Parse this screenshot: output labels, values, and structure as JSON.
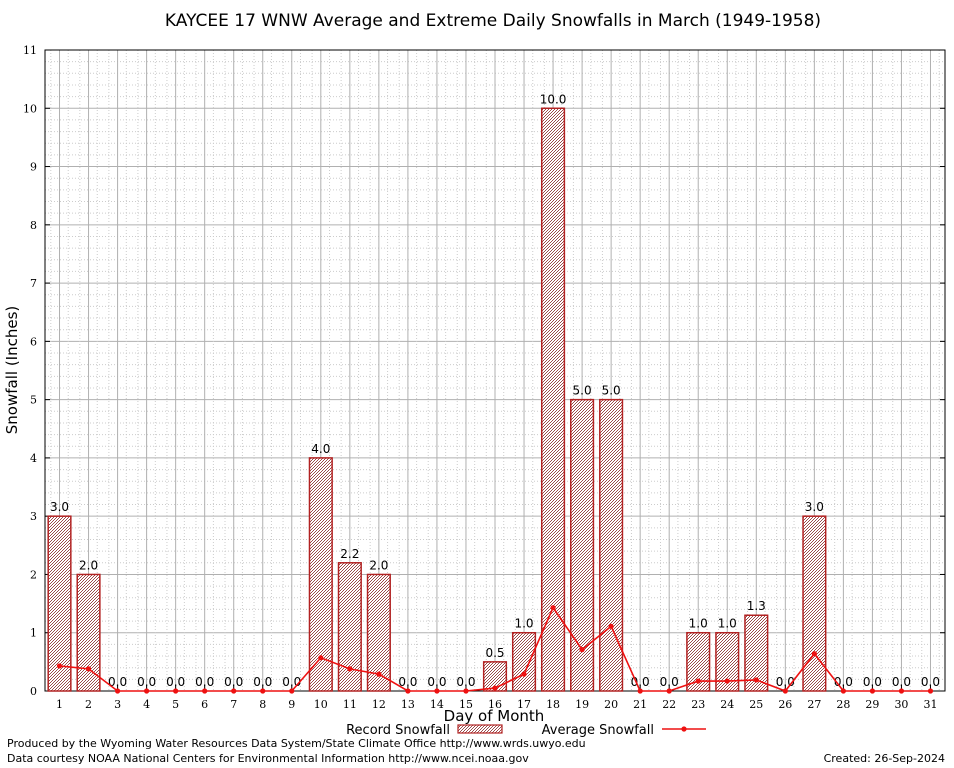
{
  "chart_data": {
    "type": "bar",
    "title": "KAYCEE 17 WNW Average and Extreme Daily Snowfalls in March (1949-1958)",
    "xlabel": "Day of Month",
    "ylabel": "Snowfall (Inches)",
    "ylim": [
      0,
      11
    ],
    "yticks": [
      "0",
      "1",
      "2",
      "3",
      "4",
      "5",
      "6",
      "7",
      "8",
      "9",
      "10",
      "11"
    ],
    "categories": [
      "1",
      "2",
      "3",
      "4",
      "5",
      "6",
      "7",
      "8",
      "9",
      "10",
      "11",
      "12",
      "13",
      "14",
      "15",
      "16",
      "17",
      "18",
      "19",
      "20",
      "21",
      "22",
      "23",
      "24",
      "25",
      "26",
      "27",
      "28",
      "29",
      "30",
      "31"
    ],
    "grid": true,
    "legend_position": "bottom",
    "series": [
      {
        "name": "Record Snowfall",
        "type": "bar",
        "color": "#b22222",
        "values": [
          3.0,
          2.0,
          0.0,
          0.0,
          0.0,
          0.0,
          0.0,
          0.0,
          0.0,
          4.0,
          2.2,
          2.0,
          0.0,
          0.0,
          0.0,
          0.5,
          1.0,
          10.0,
          5.0,
          5.0,
          0.0,
          0.0,
          1.0,
          1.0,
          1.3,
          0.0,
          3.0,
          0.0,
          0.0,
          0.0,
          0.0
        ],
        "labels": [
          "3.0",
          "2.0",
          "0.0",
          "0.0",
          "0.0",
          "0.0",
          "0.0",
          "0.0",
          "0.0",
          "4.0",
          "2.2",
          "2.0",
          "0.0",
          "0.0",
          "0.0",
          "0.5",
          "1.0",
          "10.0",
          "5.0",
          "5.0",
          "0.0",
          "0.0",
          "1.0",
          "1.0",
          "1.3",
          "0.0",
          "3.0",
          "0.0",
          "0.0",
          "0.0",
          "0.0"
        ]
      },
      {
        "name": "Average Snowfall",
        "type": "line",
        "color": "#ee1111",
        "values": [
          0.43,
          0.38,
          0.0,
          0.0,
          0.0,
          0.0,
          0.0,
          0.0,
          0.0,
          0.57,
          0.38,
          0.29,
          0.0,
          0.0,
          0.0,
          0.05,
          0.29,
          1.43,
          0.71,
          1.11,
          0.0,
          0.0,
          0.17,
          0.17,
          0.19,
          0.0,
          0.64,
          0.0,
          0.0,
          0.0,
          0.0
        ]
      }
    ]
  },
  "footer": {
    "producer": "Produced by the Wyoming Water Resources Data System/State Climate Office http://www.wrds.uwyo.edu",
    "courtesy": "Data courtesy NOAA National Centers for Environmental Information http://www.ncei.noaa.gov",
    "created": "Created:  26-Sep-2024"
  }
}
